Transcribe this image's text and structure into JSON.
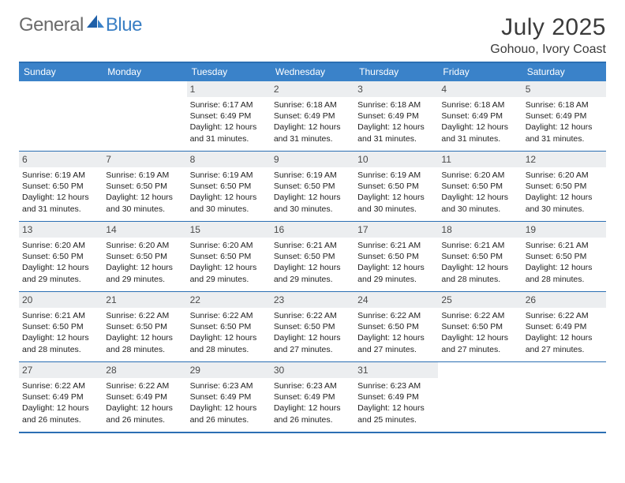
{
  "brand": {
    "part1": "General",
    "part2": "Blue"
  },
  "title": {
    "month": "July 2025",
    "location": "Gohouo, Ivory Coast"
  },
  "colors": {
    "header_bg": "#3a82c9",
    "border": "#2b6fb3",
    "daynum_bg": "#eceef0",
    "text": "#202020",
    "logo_gray": "#6b6b6b",
    "logo_blue": "#3a7fc4"
  },
  "day_names": [
    "Sunday",
    "Monday",
    "Tuesday",
    "Wednesday",
    "Thursday",
    "Friday",
    "Saturday"
  ],
  "weeks": [
    [
      null,
      null,
      {
        "n": "1",
        "sr": "6:17 AM",
        "ss": "6:49 PM",
        "dl": "12 hours and 31 minutes."
      },
      {
        "n": "2",
        "sr": "6:18 AM",
        "ss": "6:49 PM",
        "dl": "12 hours and 31 minutes."
      },
      {
        "n": "3",
        "sr": "6:18 AM",
        "ss": "6:49 PM",
        "dl": "12 hours and 31 minutes."
      },
      {
        "n": "4",
        "sr": "6:18 AM",
        "ss": "6:49 PM",
        "dl": "12 hours and 31 minutes."
      },
      {
        "n": "5",
        "sr": "6:18 AM",
        "ss": "6:49 PM",
        "dl": "12 hours and 31 minutes."
      }
    ],
    [
      {
        "n": "6",
        "sr": "6:19 AM",
        "ss": "6:50 PM",
        "dl": "12 hours and 31 minutes."
      },
      {
        "n": "7",
        "sr": "6:19 AM",
        "ss": "6:50 PM",
        "dl": "12 hours and 30 minutes."
      },
      {
        "n": "8",
        "sr": "6:19 AM",
        "ss": "6:50 PM",
        "dl": "12 hours and 30 minutes."
      },
      {
        "n": "9",
        "sr": "6:19 AM",
        "ss": "6:50 PM",
        "dl": "12 hours and 30 minutes."
      },
      {
        "n": "10",
        "sr": "6:19 AM",
        "ss": "6:50 PM",
        "dl": "12 hours and 30 minutes."
      },
      {
        "n": "11",
        "sr": "6:20 AM",
        "ss": "6:50 PM",
        "dl": "12 hours and 30 minutes."
      },
      {
        "n": "12",
        "sr": "6:20 AM",
        "ss": "6:50 PM",
        "dl": "12 hours and 30 minutes."
      }
    ],
    [
      {
        "n": "13",
        "sr": "6:20 AM",
        "ss": "6:50 PM",
        "dl": "12 hours and 29 minutes."
      },
      {
        "n": "14",
        "sr": "6:20 AM",
        "ss": "6:50 PM",
        "dl": "12 hours and 29 minutes."
      },
      {
        "n": "15",
        "sr": "6:20 AM",
        "ss": "6:50 PM",
        "dl": "12 hours and 29 minutes."
      },
      {
        "n": "16",
        "sr": "6:21 AM",
        "ss": "6:50 PM",
        "dl": "12 hours and 29 minutes."
      },
      {
        "n": "17",
        "sr": "6:21 AM",
        "ss": "6:50 PM",
        "dl": "12 hours and 29 minutes."
      },
      {
        "n": "18",
        "sr": "6:21 AM",
        "ss": "6:50 PM",
        "dl": "12 hours and 28 minutes."
      },
      {
        "n": "19",
        "sr": "6:21 AM",
        "ss": "6:50 PM",
        "dl": "12 hours and 28 minutes."
      }
    ],
    [
      {
        "n": "20",
        "sr": "6:21 AM",
        "ss": "6:50 PM",
        "dl": "12 hours and 28 minutes."
      },
      {
        "n": "21",
        "sr": "6:22 AM",
        "ss": "6:50 PM",
        "dl": "12 hours and 28 minutes."
      },
      {
        "n": "22",
        "sr": "6:22 AM",
        "ss": "6:50 PM",
        "dl": "12 hours and 28 minutes."
      },
      {
        "n": "23",
        "sr": "6:22 AM",
        "ss": "6:50 PM",
        "dl": "12 hours and 27 minutes."
      },
      {
        "n": "24",
        "sr": "6:22 AM",
        "ss": "6:50 PM",
        "dl": "12 hours and 27 minutes."
      },
      {
        "n": "25",
        "sr": "6:22 AM",
        "ss": "6:50 PM",
        "dl": "12 hours and 27 minutes."
      },
      {
        "n": "26",
        "sr": "6:22 AM",
        "ss": "6:49 PM",
        "dl": "12 hours and 27 minutes."
      }
    ],
    [
      {
        "n": "27",
        "sr": "6:22 AM",
        "ss": "6:49 PM",
        "dl": "12 hours and 26 minutes."
      },
      {
        "n": "28",
        "sr": "6:22 AM",
        "ss": "6:49 PM",
        "dl": "12 hours and 26 minutes."
      },
      {
        "n": "29",
        "sr": "6:23 AM",
        "ss": "6:49 PM",
        "dl": "12 hours and 26 minutes."
      },
      {
        "n": "30",
        "sr": "6:23 AM",
        "ss": "6:49 PM",
        "dl": "12 hours and 26 minutes."
      },
      {
        "n": "31",
        "sr": "6:23 AM",
        "ss": "6:49 PM",
        "dl": "12 hours and 25 minutes."
      },
      null,
      null
    ]
  ],
  "labels": {
    "sunrise": "Sunrise:",
    "sunset": "Sunset:",
    "daylight": "Daylight:"
  }
}
